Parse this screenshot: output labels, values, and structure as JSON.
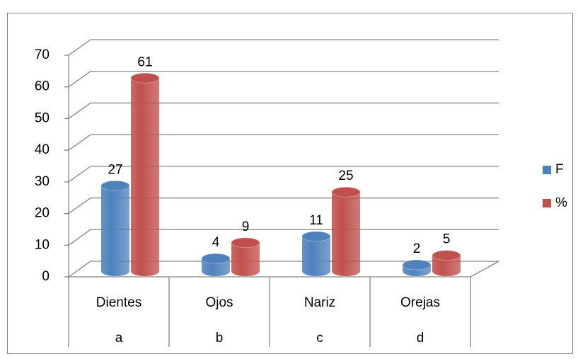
{
  "chart_data": {
    "type": "bar3d",
    "categories": [
      "Dientes",
      "Ojos",
      "Nariz",
      "Orejas"
    ],
    "group_labels": [
      "a",
      "b",
      "c",
      "d"
    ],
    "series": [
      {
        "name": "F",
        "color": "#4f81bd",
        "values": [
          27,
          4,
          11,
          2
        ]
      },
      {
        "name": "%",
        "color": "#c0504d",
        "values": [
          61,
          9,
          25,
          5
        ]
      }
    ],
    "ylim": [
      0,
      70
    ],
    "yticks": [
      0,
      10,
      20,
      30,
      40,
      50,
      60,
      70
    ],
    "grid": true,
    "legend": "right"
  }
}
